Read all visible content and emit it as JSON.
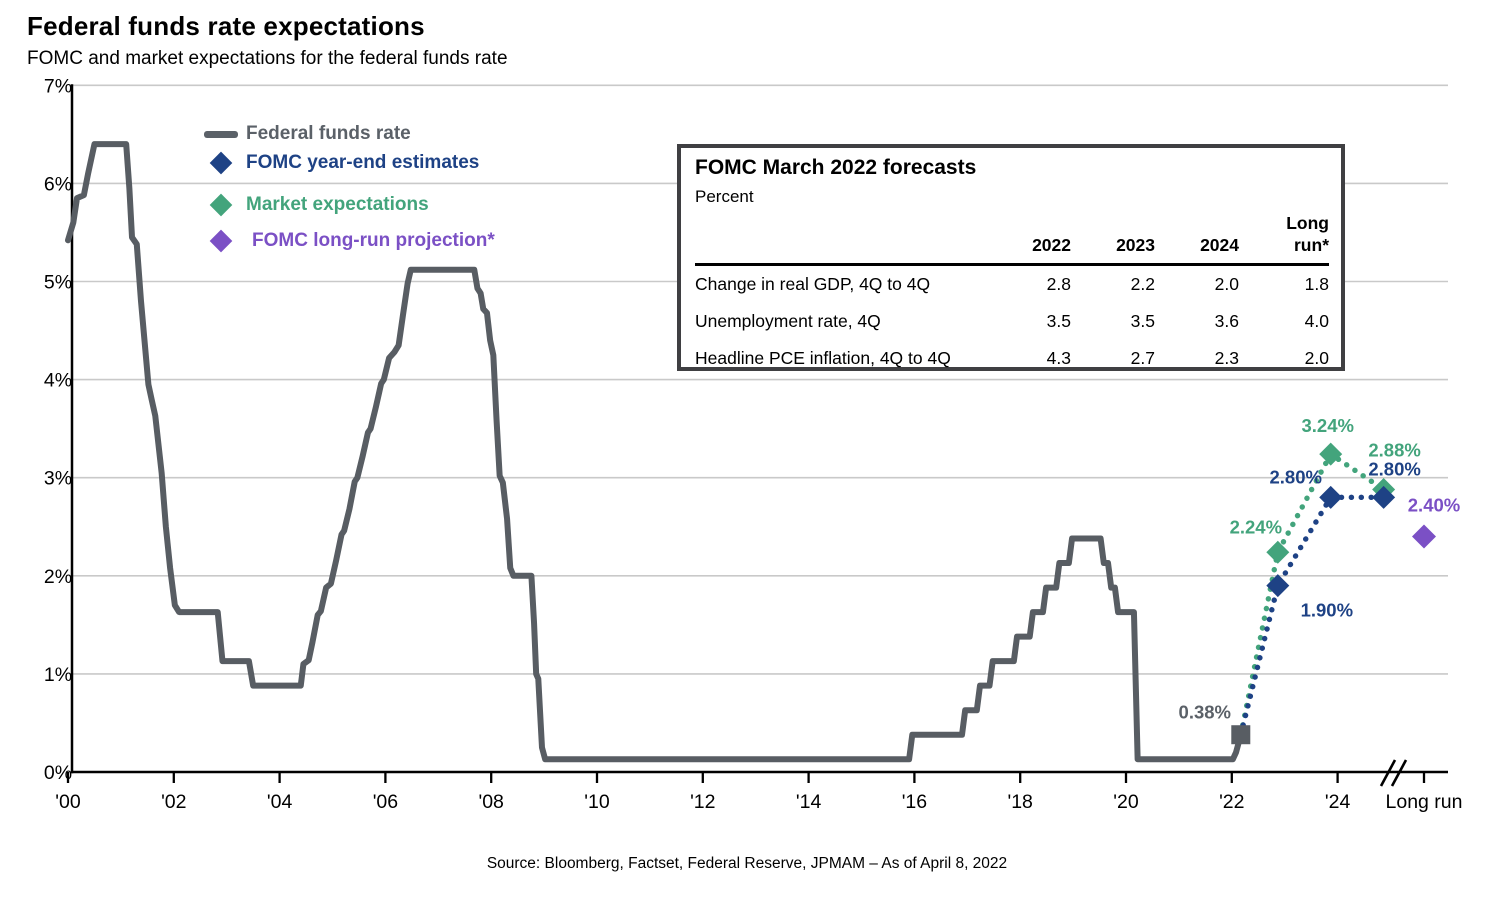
{
  "header": {
    "title": "Federal funds rate expectations",
    "subtitle": "FOMC and market expectations for the federal funds rate"
  },
  "source": "Source: Bloomberg,  Factset, Federal Reserve, JPMAM – As of  April 8, 2022",
  "colors": {
    "line_gray": "#585D63",
    "gray_text": "#5B6168",
    "navy": "#1E4285",
    "green": "#43A47C",
    "purple": "#7B50C5",
    "gridline": "#C9C9C9",
    "axis": "#000000"
  },
  "legend": {
    "items": [
      {
        "label": "Federal funds rate",
        "marker": "dash",
        "color": "#5B6168"
      },
      {
        "label": "FOMC year-end estimates",
        "marker": "diamond",
        "color": "#1E4285"
      },
      {
        "label": "Market expectations",
        "marker": "diamond",
        "color": "#43A47C"
      },
      {
        "label": "FOMC long-run projection*",
        "marker": "diamond",
        "color": "#7B50C5"
      }
    ]
  },
  "forecast_table": {
    "title": "FOMC March 2022 forecasts",
    "unit_label": "Percent",
    "columns": [
      "2022",
      "2023",
      "2024",
      "Long run*"
    ],
    "rows": [
      {
        "label": "Change in real GDP, 4Q to 4Q",
        "values": [
          "2.8",
          "2.2",
          "2.0",
          "1.8"
        ]
      },
      {
        "label": "Unemployment rate, 4Q",
        "values": [
          "3.5",
          "3.5",
          "3.6",
          "4.0"
        ]
      },
      {
        "label": "Headline PCE inflation, 4Q to 4Q",
        "values": [
          "4.3",
          "2.7",
          "2.3",
          "2.0"
        ]
      }
    ]
  },
  "chart_data": {
    "type": "line",
    "title": "Federal funds rate expectations",
    "xlabel": "",
    "ylabel": "",
    "ylim": [
      0,
      7
    ],
    "grid": true,
    "y_ticks": [
      {
        "value": 0,
        "label": "0%"
      },
      {
        "value": 1,
        "label": "1%"
      },
      {
        "value": 2,
        "label": "2%"
      },
      {
        "value": 3,
        "label": "3%"
      },
      {
        "value": 4,
        "label": "4%"
      },
      {
        "value": 5,
        "label": "5%"
      },
      {
        "value": 6,
        "label": "6%"
      },
      {
        "value": 7,
        "label": "7%"
      }
    ],
    "x_ticks": [
      {
        "year": 2000,
        "label": "'00"
      },
      {
        "year": 2002,
        "label": "'02"
      },
      {
        "year": 2004,
        "label": "'04"
      },
      {
        "year": 2006,
        "label": "'06"
      },
      {
        "year": 2008,
        "label": "'08"
      },
      {
        "year": 2010,
        "label": "'10"
      },
      {
        "year": 2012,
        "label": "'12"
      },
      {
        "year": 2014,
        "label": "'14"
      },
      {
        "year": 2016,
        "label": "'16"
      },
      {
        "year": 2018,
        "label": "'18"
      },
      {
        "year": 2020,
        "label": "'20"
      },
      {
        "year": 2022,
        "label": "'22"
      },
      {
        "year": 2024,
        "label": "'24"
      },
      {
        "label": "Long run",
        "long_run": true
      }
    ],
    "has_axis_break_before_long_run": true,
    "series": {
      "federal_funds_rate": {
        "name": "Federal funds rate",
        "color": "#585D63",
        "points": [
          [
            2000.0,
            5.42
          ],
          [
            2000.1,
            5.6
          ],
          [
            2000.17,
            5.85
          ],
          [
            2000.3,
            5.88
          ],
          [
            2000.38,
            6.1
          ],
          [
            2000.5,
            6.4
          ],
          [
            2001.1,
            6.4
          ],
          [
            2001.16,
            5.95
          ],
          [
            2001.21,
            5.45
          ],
          [
            2001.3,
            5.38
          ],
          [
            2001.38,
            4.8
          ],
          [
            2001.52,
            3.95
          ],
          [
            2001.58,
            3.8
          ],
          [
            2001.65,
            3.63
          ],
          [
            2001.77,
            3.05
          ],
          [
            2001.85,
            2.5
          ],
          [
            2001.93,
            2.08
          ],
          [
            2002.02,
            1.7
          ],
          [
            2002.1,
            1.63
          ],
          [
            2002.83,
            1.63
          ],
          [
            2002.92,
            1.13
          ],
          [
            2003.42,
            1.13
          ],
          [
            2003.5,
            0.88
          ],
          [
            2004.4,
            0.88
          ],
          [
            2004.45,
            1.1
          ],
          [
            2004.55,
            1.14
          ],
          [
            2004.62,
            1.32
          ],
          [
            2004.72,
            1.6
          ],
          [
            2004.78,
            1.64
          ],
          [
            2004.88,
            1.88
          ],
          [
            2004.97,
            1.92
          ],
          [
            2005.07,
            2.16
          ],
          [
            2005.17,
            2.42
          ],
          [
            2005.22,
            2.46
          ],
          [
            2005.32,
            2.68
          ],
          [
            2005.42,
            2.96
          ],
          [
            2005.47,
            3.0
          ],
          [
            2005.57,
            3.22
          ],
          [
            2005.67,
            3.46
          ],
          [
            2005.72,
            3.5
          ],
          [
            2005.82,
            3.72
          ],
          [
            2005.92,
            3.96
          ],
          [
            2005.97,
            4.0
          ],
          [
            2006.07,
            4.22
          ],
          [
            2006.17,
            4.28
          ],
          [
            2006.25,
            4.35
          ],
          [
            2006.33,
            4.65
          ],
          [
            2006.42,
            4.98
          ],
          [
            2006.48,
            5.12
          ],
          [
            2007.68,
            5.12
          ],
          [
            2007.74,
            4.93
          ],
          [
            2007.8,
            4.88
          ],
          [
            2007.85,
            4.72
          ],
          [
            2007.92,
            4.68
          ],
          [
            2007.98,
            4.4
          ],
          [
            2008.04,
            4.25
          ],
          [
            2008.1,
            3.6
          ],
          [
            2008.16,
            3.02
          ],
          [
            2008.22,
            2.95
          ],
          [
            2008.3,
            2.58
          ],
          [
            2008.36,
            2.08
          ],
          [
            2008.42,
            2.0
          ],
          [
            2008.76,
            2.0
          ],
          [
            2008.81,
            1.52
          ],
          [
            2008.85,
            1.0
          ],
          [
            2008.89,
            0.95
          ],
          [
            2008.96,
            0.25
          ],
          [
            2009.02,
            0.13
          ],
          [
            2015.9,
            0.13
          ],
          [
            2015.96,
            0.38
          ],
          [
            2016.9,
            0.38
          ],
          [
            2016.96,
            0.63
          ],
          [
            2017.18,
            0.63
          ],
          [
            2017.24,
            0.88
          ],
          [
            2017.42,
            0.88
          ],
          [
            2017.48,
            1.13
          ],
          [
            2017.88,
            1.13
          ],
          [
            2017.94,
            1.38
          ],
          [
            2018.18,
            1.38
          ],
          [
            2018.24,
            1.63
          ],
          [
            2018.43,
            1.63
          ],
          [
            2018.49,
            1.88
          ],
          [
            2018.68,
            1.88
          ],
          [
            2018.74,
            2.13
          ],
          [
            2018.92,
            2.13
          ],
          [
            2018.98,
            2.38
          ],
          [
            2019.52,
            2.38
          ],
          [
            2019.58,
            2.13
          ],
          [
            2019.66,
            2.13
          ],
          [
            2019.72,
            1.88
          ],
          [
            2019.79,
            1.88
          ],
          [
            2019.85,
            1.63
          ],
          [
            2020.15,
            1.63
          ],
          [
            2020.22,
            0.13
          ],
          [
            2022.02,
            0.13
          ],
          [
            2022.08,
            0.2
          ],
          [
            2022.17,
            0.38
          ]
        ]
      },
      "current_marker": {
        "name": "Federal funds rate (March 2022)",
        "shape": "square",
        "color": "#585D63",
        "x": 2022.17,
        "y": 0.38,
        "label": "0.38%",
        "label_color": "#5B6168",
        "label_offset": [
          -36,
          -22
        ]
      },
      "fomc_estimates": {
        "name": "FOMC year-end estimates",
        "color": "#1E4285",
        "style": "dotted",
        "start": [
          2022.17,
          0.38
        ],
        "points": [
          {
            "x": 2022.87,
            "y": 1.9,
            "label": "1.90%",
            "label_offset": [
              49,
              25
            ]
          },
          {
            "x": 2023.87,
            "y": 2.8,
            "label": "2.80%",
            "label_offset": [
              -35,
              -20
            ]
          },
          {
            "x": 2024.87,
            "y": 2.8,
            "label": "2.80%",
            "label_offset": [
              11,
              -28
            ]
          }
        ]
      },
      "market_expectations": {
        "name": "Market expectations",
        "color": "#43A47C",
        "style": "dotted",
        "start": [
          2022.17,
          0.38
        ],
        "points": [
          {
            "x": 2022.87,
            "y": 2.24,
            "label": "2.24%",
            "label_offset": [
              -22,
              -25
            ]
          },
          {
            "x": 2023.87,
            "y": 3.24,
            "label": "3.24%",
            "label_offset": [
              -3,
              -28
            ]
          },
          {
            "x": 2024.87,
            "y": 2.88,
            "label": "2.88%",
            "label_offset": [
              11,
              -39
            ]
          }
        ]
      },
      "fomc_long_run": {
        "name": "FOMC long-run projection*",
        "color": "#7B50C5",
        "at_long_run_tick": true,
        "y": 2.4,
        "label": "2.40%",
        "label_offset": [
          10,
          -31
        ]
      }
    }
  }
}
